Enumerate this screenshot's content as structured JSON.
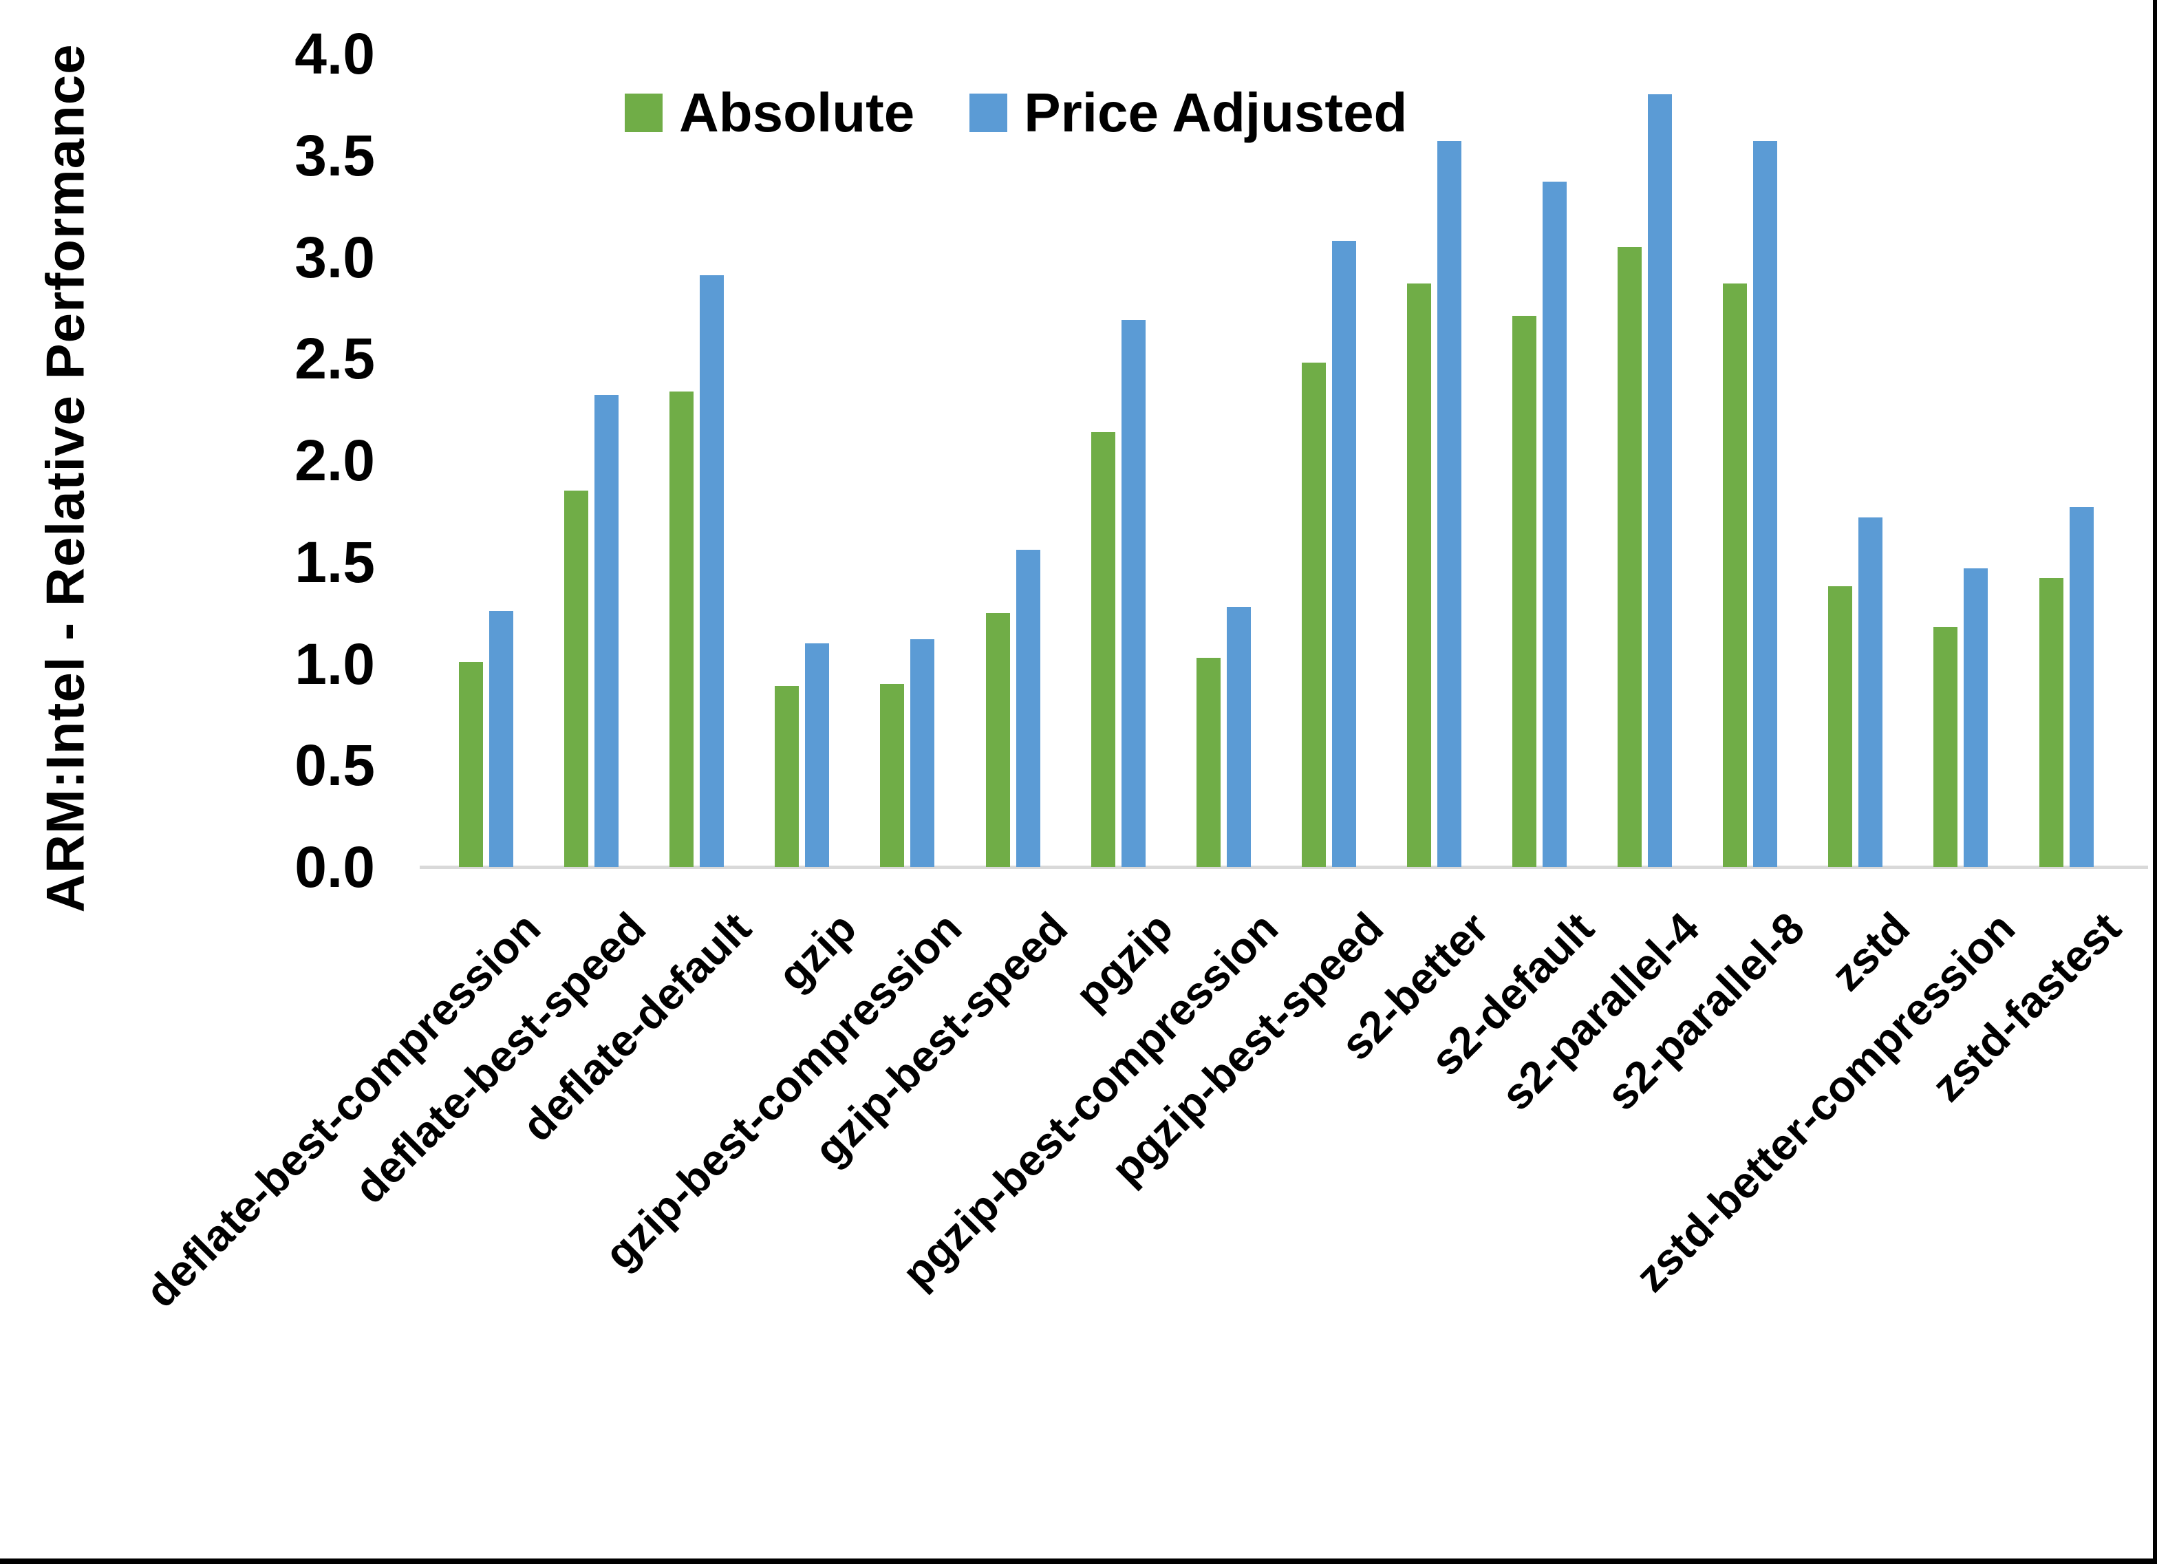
{
  "chart_data": {
    "type": "bar",
    "title": "",
    "ylabel": "ARM:Intel - Relative Performance",
    "xlabel": "",
    "ylim": [
      0.0,
      4.0
    ],
    "ytick_step": 0.5,
    "ytick_labels": [
      "0.0",
      "0.5",
      "1.0",
      "1.5",
      "2.0",
      "2.5",
      "3.0",
      "3.5",
      "4.0"
    ],
    "grid": false,
    "legend_position": "top-center",
    "x_label_rotation_deg": 45,
    "categories": [
      "deflate-best-compression",
      "deflate-best-speed",
      "deflate-default",
      "gzip",
      "gzip-best-compression",
      "gzip-best-speed",
      "pgzip",
      "pgzip-best-compression",
      "pgzip-best-speed",
      "s2-better",
      "s2-default",
      "s2-parallel-4",
      "s2-parallel-8",
      "zstd",
      "zstd-better-compression",
      "zstd-fastest"
    ],
    "series": [
      {
        "name": "Absolute",
        "color": "#70AD47",
        "values": [
          1.01,
          1.85,
          2.34,
          0.89,
          0.9,
          1.25,
          2.14,
          1.03,
          2.48,
          2.87,
          2.71,
          3.05,
          2.87,
          1.38,
          1.18,
          1.42
        ]
      },
      {
        "name": "Price Adjusted",
        "color": "#5B9BD5",
        "values": [
          1.26,
          2.32,
          2.91,
          1.1,
          1.12,
          1.56,
          2.69,
          1.28,
          3.08,
          3.57,
          3.37,
          3.8,
          3.57,
          1.72,
          1.47,
          1.77
        ]
      }
    ]
  },
  "colors": {
    "background": "#FFFFFF",
    "text": "#000000",
    "axis_line": "#D9D9D9",
    "frame_border": "#000000"
  }
}
